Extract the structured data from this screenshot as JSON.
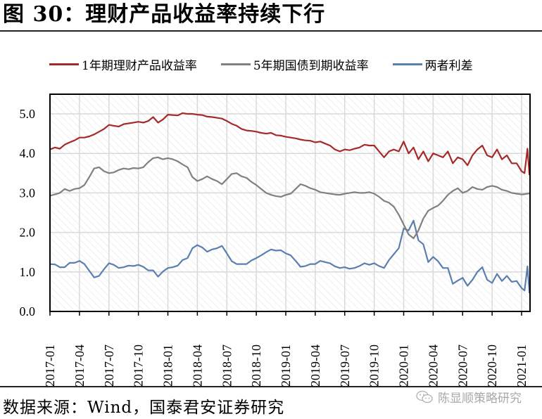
{
  "figure": {
    "title": "图 30：理财产品收益率持续下行",
    "source": "数据来源：Wind，国泰君安证券研究",
    "watermark": "陈显顺策略研究",
    "watermark_icon": "wechat-icon"
  },
  "legend": [
    {
      "label": "1年期理财产品收益率",
      "color": "#a52a2a"
    },
    {
      "label": "5年期国债到期收益率",
      "color": "#808080"
    },
    {
      "label": "两者利差",
      "color": "#5b7fae"
    }
  ],
  "chart_data": {
    "type": "line",
    "title": "理财产品收益率持续下行",
    "xlabel": "",
    "ylabel": "",
    "ylim": [
      0.0,
      5.5
    ],
    "yticks": [
      "0.0",
      "1.0",
      "2.0",
      "3.0",
      "4.0",
      "5.0"
    ],
    "xticks": [
      "2017-01",
      "2017-04",
      "2017-07",
      "2017-10",
      "2018-01",
      "2018-04",
      "2018-07",
      "2018-10",
      "2019-01",
      "2019-04",
      "2019-07",
      "2019-10",
      "2020-01",
      "2020-04",
      "2020-07",
      "2020-10",
      "2021-01"
    ],
    "grid": true,
    "legend_position": "top",
    "x_unit": "months since 2017-01",
    "x": [
      0,
      0.5,
      1,
      1.5,
      2,
      2.5,
      3,
      3.5,
      4,
      4.5,
      5,
      5.5,
      6,
      6.5,
      7,
      7.5,
      8,
      8.5,
      9,
      9.5,
      10,
      10.5,
      11,
      11.5,
      12,
      12.5,
      13,
      13.5,
      14,
      14.5,
      15,
      15.5,
      16,
      16.5,
      17,
      17.5,
      18,
      18.5,
      19,
      19.5,
      20,
      20.5,
      21,
      21.5,
      22,
      22.5,
      23,
      23.5,
      24,
      24.5,
      25,
      25.5,
      26,
      26.5,
      27,
      27.5,
      28,
      28.5,
      29,
      29.5,
      30,
      30.5,
      31,
      31.5,
      32,
      32.5,
      33,
      33.5,
      34,
      34.5,
      35,
      35.5,
      36,
      36.5,
      37,
      37.5,
      38,
      38.5,
      39,
      39.5,
      40,
      40.5,
      41,
      41.5,
      42,
      42.5,
      43,
      43.5,
      44,
      44.5,
      45,
      45.5,
      46,
      46.5,
      47,
      47.5,
      48,
      48.3,
      48.6,
      48.8
    ],
    "series": [
      {
        "name": "1年期理财产品收益率",
        "color": "#a52a2a",
        "values": [
          4.1,
          4.15,
          4.12,
          4.22,
          4.28,
          4.33,
          4.4,
          4.4,
          4.43,
          4.48,
          4.55,
          4.62,
          4.72,
          4.7,
          4.68,
          4.74,
          4.76,
          4.78,
          4.8,
          4.78,
          4.82,
          4.92,
          4.78,
          4.86,
          4.98,
          4.97,
          4.96,
          5.02,
          5.0,
          5.0,
          4.98,
          4.97,
          4.93,
          4.92,
          4.9,
          4.88,
          4.82,
          4.75,
          4.7,
          4.62,
          4.58,
          4.57,
          4.55,
          4.52,
          4.5,
          4.52,
          4.46,
          4.45,
          4.42,
          4.4,
          4.38,
          4.35,
          4.33,
          4.32,
          4.28,
          4.3,
          4.25,
          4.2,
          4.1,
          4.05,
          4.1,
          4.08,
          4.12,
          4.15,
          4.22,
          4.2,
          4.2,
          4.05,
          3.9,
          4.05,
          4.1,
          4.05,
          4.3,
          4.0,
          4.15,
          3.85,
          4.05,
          3.8,
          4.0,
          3.95,
          3.9,
          4.05,
          3.75,
          3.9,
          3.85,
          3.7,
          3.95,
          4.1,
          4.2,
          3.95,
          3.9,
          4.1,
          3.85,
          3.95,
          3.75,
          3.75,
          3.55,
          3.5,
          4.12,
          3.45
        ]
      },
      {
        "name": "5年期国债到期收益率",
        "color": "#808080",
        "values": [
          2.93,
          2.96,
          3.0,
          3.1,
          3.05,
          3.1,
          3.12,
          3.2,
          3.4,
          3.62,
          3.65,
          3.55,
          3.5,
          3.52,
          3.58,
          3.62,
          3.6,
          3.63,
          3.62,
          3.65,
          3.78,
          3.88,
          3.9,
          3.85,
          3.88,
          3.85,
          3.8,
          3.72,
          3.65,
          3.4,
          3.3,
          3.35,
          3.42,
          3.35,
          3.3,
          3.22,
          3.35,
          3.48,
          3.5,
          3.42,
          3.38,
          3.28,
          3.2,
          3.1,
          3.0,
          2.95,
          2.92,
          2.9,
          2.95,
          2.98,
          3.1,
          3.22,
          3.18,
          3.12,
          3.08,
          3.02,
          3.0,
          2.98,
          2.96,
          2.95,
          2.98,
          3.0,
          3.02,
          3.0,
          3.0,
          3.02,
          2.98,
          2.9,
          2.8,
          2.75,
          2.65,
          2.45,
          2.2,
          1.95,
          1.85,
          2.05,
          2.35,
          2.55,
          2.62,
          2.68,
          2.8,
          2.95,
          3.05,
          3.12,
          3.0,
          3.05,
          3.15,
          3.1,
          3.08,
          3.15,
          3.18,
          3.15,
          3.08,
          3.05,
          3.0,
          2.98,
          2.96,
          2.97,
          2.98,
          2.99
        ]
      },
      {
        "name": "两者利差",
        "color": "#5b7fae",
        "values": [
          1.2,
          1.19,
          1.12,
          1.12,
          1.23,
          1.23,
          1.28,
          1.2,
          1.03,
          0.86,
          0.9,
          1.07,
          1.22,
          1.18,
          1.1,
          1.12,
          1.16,
          1.15,
          1.18,
          1.13,
          1.04,
          1.04,
          0.88,
          1.01,
          1.1,
          1.12,
          1.16,
          1.3,
          1.35,
          1.6,
          1.68,
          1.62,
          1.51,
          1.57,
          1.6,
          1.66,
          1.47,
          1.27,
          1.2,
          1.2,
          1.2,
          1.29,
          1.35,
          1.42,
          1.5,
          1.57,
          1.54,
          1.55,
          1.47,
          1.42,
          1.28,
          1.13,
          1.15,
          1.2,
          1.2,
          1.28,
          1.25,
          1.22,
          1.14,
          1.1,
          1.12,
          1.08,
          1.1,
          1.15,
          1.22,
          1.18,
          1.22,
          1.15,
          1.1,
          1.3,
          1.45,
          1.6,
          2.1,
          2.05,
          2.3,
          1.8,
          1.7,
          1.25,
          1.38,
          1.27,
          1.1,
          1.1,
          0.7,
          0.78,
          0.85,
          0.65,
          0.8,
          1.0,
          1.12,
          0.8,
          0.72,
          0.95,
          0.77,
          0.9,
          0.75,
          0.77,
          0.59,
          0.53,
          1.14,
          0.46
        ]
      }
    ]
  }
}
